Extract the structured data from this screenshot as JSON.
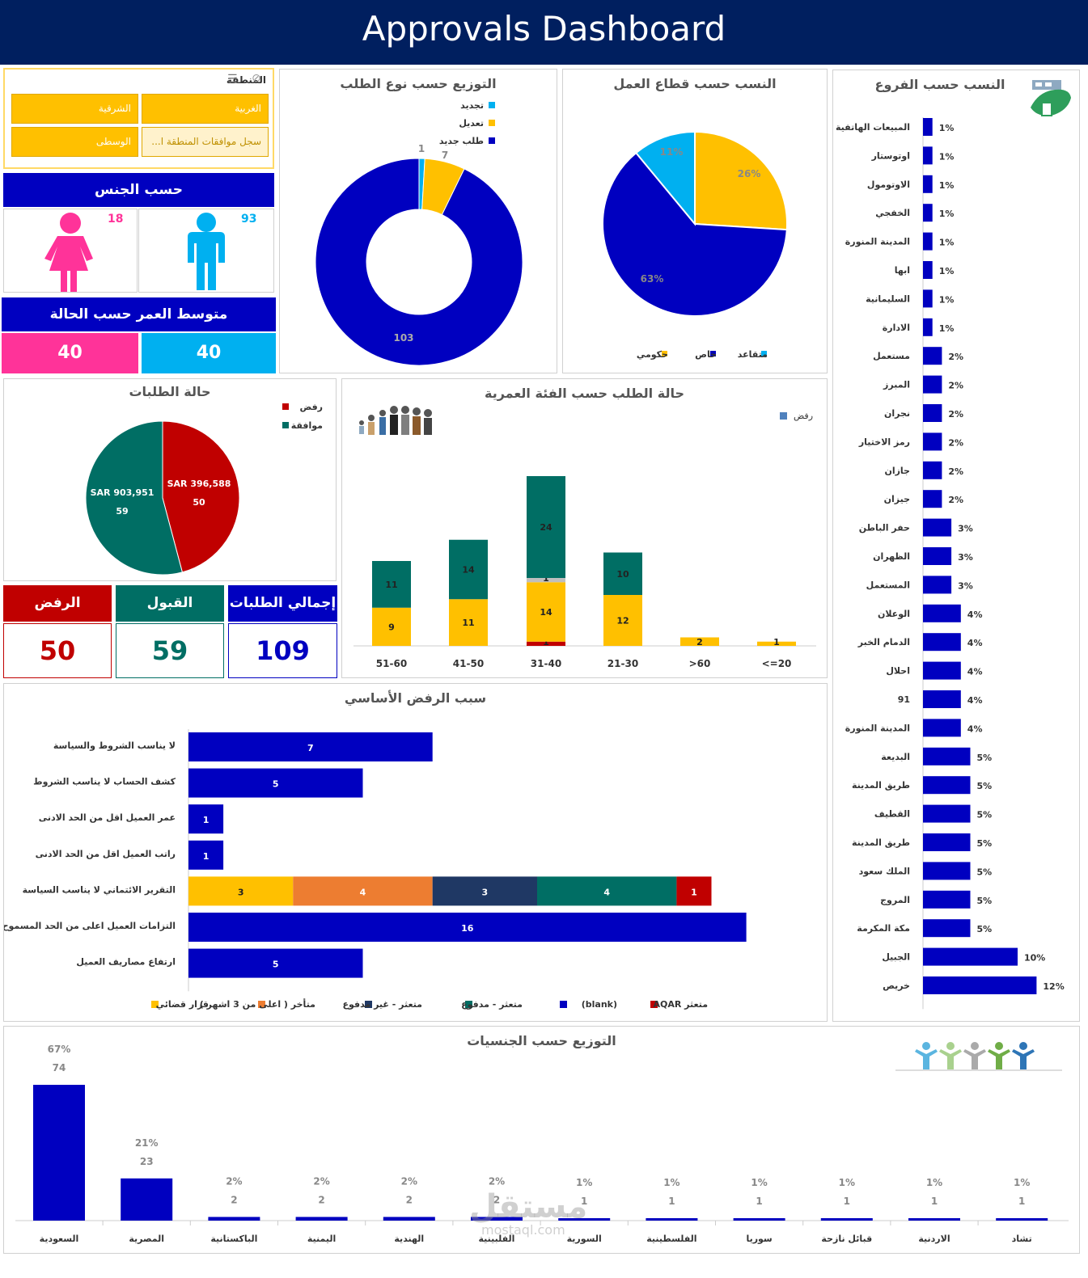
{
  "header": {
    "title": "Approvals Dashboard"
  },
  "slicer": {
    "title": "المنطقة",
    "items": [
      "الغربية",
      "الشرقية",
      "سجل موافقات المنطقة ا...",
      "الوسطى"
    ]
  },
  "gender": {
    "title": "حسب الجنس",
    "male": "93",
    "female": "18"
  },
  "age_avg": {
    "title": "متوسط العمر حسب الحالة",
    "left": "40",
    "right": "40"
  },
  "kpi": {
    "reject_label": "الرفض",
    "reject_value": "50",
    "accept_label": "القبول",
    "accept_value": "59",
    "total_label": "إجمالي الطلبات",
    "total_value": "109"
  },
  "watermark": {
    "text": "مستقل",
    "sub": "mostaql.com"
  },
  "colors": {
    "navy": "#001f5f",
    "blue": "#0000c0",
    "yellow": "#ffc000",
    "cyan": "#00b0f0",
    "teal": "#006e64",
    "red": "#c00000",
    "pink": "#ff3399",
    "orange": "#ed7d31",
    "darknavy": "#1f3864",
    "gray": "#bfbfbf"
  },
  "chart_data": [
    {
      "id": "request_type",
      "type": "pie",
      "title": "التوزيع حسب نوع الطلب",
      "donut": true,
      "labels": [
        "تجديد",
        "تعديل",
        "طلب جديد"
      ],
      "values": [
        1,
        7,
        103
      ],
      "colors": [
        "#00b0f0",
        "#ffc000",
        "#0000c0"
      ]
    },
    {
      "id": "sector",
      "type": "pie",
      "title": "النسب حسب قطاع العمل",
      "labels": [
        "حكومي",
        "خاص",
        "متقاعد"
      ],
      "values": [
        26,
        63,
        11
      ],
      "value_labels": [
        "26%",
        "63%",
        "11%"
      ],
      "colors": [
        "#ffc000",
        "#0000c0",
        "#00b0f0"
      ]
    },
    {
      "id": "branches",
      "type": "bar",
      "title": "النسب حسب الفروع",
      "categories": [
        "المبيعات الهاتفية",
        "اوتوستار",
        "الاوتومول",
        "الخفجي",
        "المدينة المنورة",
        "ابها",
        "السليمانية",
        "الادارة",
        "مستعمل",
        "المبرز",
        "نجران",
        "رمز الاختيار",
        "جازان",
        "جيزان",
        "حفر الباطن",
        "الظهران",
        "المستعمل",
        "الوعلان",
        "الدمام الخبر",
        "احلال",
        "91",
        "المدينة المنورة",
        "البديعة",
        "طريق المدينة",
        "القطيف",
        "طريق المدينة",
        "الملك سعود",
        "المروج",
        "مكة المكرمة",
        "الجبيل",
        "خريص"
      ],
      "values": [
        1,
        1,
        1,
        1,
        1,
        1,
        1,
        1,
        2,
        2,
        2,
        2,
        2,
        2,
        3,
        3,
        3,
        4,
        4,
        4,
        4,
        4,
        5,
        5,
        5,
        5,
        5,
        5,
        5,
        10,
        12
      ],
      "value_labels": [
        "1%",
        "1%",
        "1%",
        "1%",
        "1%",
        "1%",
        "1%",
        "1%",
        "2%",
        "2%",
        "2%",
        "2%",
        "2%",
        "2%",
        "3%",
        "3%",
        "3%",
        "4%",
        "4%",
        "4%",
        "4%",
        "4%",
        "5%",
        "5%",
        "5%",
        "5%",
        "5%",
        "5%",
        "5%",
        "10%",
        "12%"
      ]
    },
    {
      "id": "status",
      "type": "pie",
      "title": "حالة الطلبات",
      "labels": [
        "رفض",
        "موافقة"
      ],
      "values": [
        50,
        59
      ],
      "amounts": [
        "SAR 396,588",
        "SAR 903,951"
      ],
      "colors": [
        "#c00000",
        "#006e64"
      ]
    },
    {
      "id": "age_group",
      "type": "bar",
      "stacked": true,
      "title": "حالة الطلب حسب الفئة العمرية",
      "legend": [
        "رفض"
      ],
      "categories": [
        "51-60",
        "41-50",
        "31-40",
        "21-30",
        ">60",
        "<=20"
      ],
      "series": [
        {
          "values": [
            0,
            0,
            1,
            0,
            0,
            0
          ],
          "color": "#c00000"
        },
        {
          "values": [
            9,
            11,
            14,
            12,
            2,
            1
          ],
          "color": "#ffc000"
        },
        {
          "values": [
            0,
            0,
            1,
            0,
            0,
            0
          ],
          "color": "#bfbfbf"
        },
        {
          "values": [
            11,
            14,
            24,
            10,
            0,
            0
          ],
          "color": "#006e64"
        }
      ]
    },
    {
      "id": "reject_reason",
      "type": "bar",
      "stacked": true,
      "title": "سبب الرفض الأساسي",
      "categories": [
        "لا يناسب الشروط والسياسة",
        "كشف الحساب لا يناسب الشروط",
        "عمر العميل اقل من الحد الادنى",
        "راتب العميل اقل من الحد الادنى",
        "التقرير الائتماني لا يناسب السياسة",
        "التزامات العميل اعلى من الحد المسموح",
        "ارتفاع مصاريف العميل"
      ],
      "series": [
        {
          "name": "قرار قضائي",
          "values": [
            0,
            0,
            0,
            0,
            3,
            0,
            0
          ],
          "color": "#ffc000"
        },
        {
          "name": "متأخر ( اعلى من 3 اشهر )",
          "values": [
            0,
            0,
            0,
            0,
            4,
            0,
            0
          ],
          "color": "#ed7d31"
        },
        {
          "name": "متعثر - غير مدفوع",
          "values": [
            0,
            0,
            0,
            0,
            3,
            0,
            0
          ],
          "color": "#1f3864"
        },
        {
          "name": "متعثر - مدفوع",
          "values": [
            0,
            0,
            0,
            0,
            4,
            0,
            0
          ],
          "color": "#006e64"
        },
        {
          "name": "(blank)",
          "values": [
            7,
            5,
            1,
            1,
            0,
            16,
            5
          ],
          "color": "#0000c0"
        },
        {
          "name": "AQAR متعثر",
          "values": [
            0,
            0,
            0,
            0,
            1,
            0,
            0
          ],
          "color": "#c00000"
        }
      ]
    },
    {
      "id": "nationality",
      "type": "bar",
      "title": "التوزيع حسب الجنسيات",
      "categories": [
        "السعودية",
        "المصرية",
        "الباكستانية",
        "اليمنية",
        "الهندية",
        "الفلبينية",
        "السورية",
        "الفلسطينية",
        "سوريا",
        "قبائل نازحة",
        "الاردنية",
        "تشاد"
      ],
      "values": [
        74,
        23,
        2,
        2,
        2,
        2,
        1,
        1,
        1,
        1,
        1,
        1
      ],
      "value_labels": [
        "67%",
        "21%",
        "2%",
        "2%",
        "2%",
        "2%",
        "1%",
        "1%",
        "1%",
        "1%",
        "1%",
        "1%"
      ]
    }
  ]
}
